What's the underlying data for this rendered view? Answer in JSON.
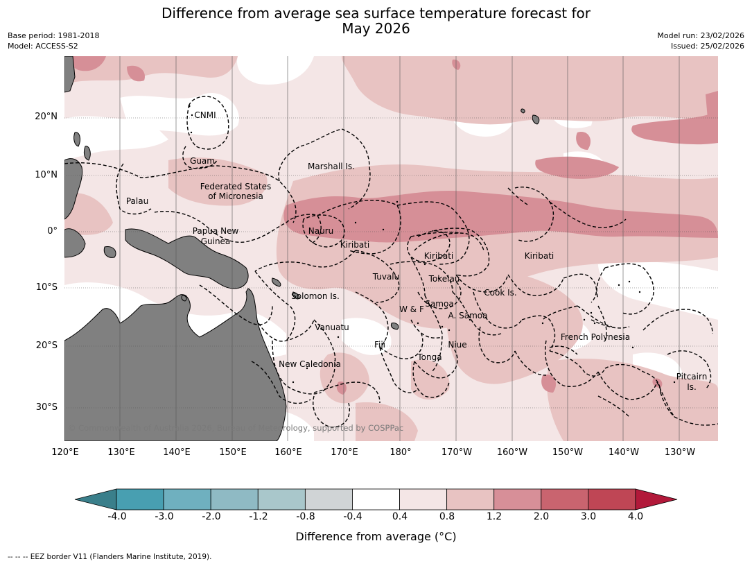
{
  "title_line1": "Difference from average sea surface temperature forecast for",
  "title_line2": "May 2026",
  "meta": {
    "base_period": "Base period: 1981-2018",
    "model": "Model: ACCESS-S2",
    "model_run": "Model run: 23/02/2026",
    "issued": "Issued: 25/02/2026"
  },
  "lat_labels": [
    "20°N",
    "10°N",
    "0°",
    "10°S",
    "20°S",
    "30°S"
  ],
  "lon_labels": [
    "120°E",
    "130°E",
    "140°E",
    "150°E",
    "160°E",
    "170°E",
    "180°",
    "170°W",
    "160°W",
    "150°W",
    "140°W",
    "130°W"
  ],
  "places": {
    "cnmi": "CNMI",
    "guam": "Guam",
    "marshall": "Marshall Is.",
    "fsm1": "Federated States",
    "fsm2": "of Micronesia",
    "palau": "Palau",
    "png1": "Papua New",
    "png2": "Guinea",
    "nauru": "Nauru",
    "kiribati_w": "Kiribati",
    "kiribati_c": "Kiribati",
    "kiribati_e": "Kiribati",
    "tuvalu": "Tuvalu",
    "tokelau": "Tokelau",
    "solomon": "Solomon Is.",
    "samoa": "Samoa",
    "wf": "W & F",
    "asamoa": "A. Samoa",
    "cook": "Cook Is.",
    "vanuatu": "Vanuatu",
    "fiji": "Fiji",
    "niue": "Niue",
    "tonga": "Tonga",
    "newcal": "New Caledonia",
    "frpoly": "French Polynesia",
    "pitcairn1": "Pitcairn",
    "pitcairn2": "Is."
  },
  "copyright": "© Commonwealth of Australia 2026, Bureau of Meteorology, supported by COSPPac",
  "colorbar": {
    "title": "Difference from average (°C)",
    "labels": [
      "-4.0",
      "-3.0",
      "-2.0",
      "-1.2",
      "-0.8",
      "-0.4",
      "0.4",
      "0.8",
      "1.2",
      "2.0",
      "3.0",
      "4.0"
    ],
    "low_color": "#3a7f8b",
    "high_color": "#b2193a",
    "colors": [
      "#489fb1",
      "#6fb0bf",
      "#8fbac4",
      "#a9c7cb",
      "#d0d4d6",
      "#ffffff",
      "#f4e6e6",
      "#e8c3c2",
      "#d78f98",
      "#c9646f",
      "#bf4655"
    ]
  },
  "footnote": "-- -- -- EEZ border V11 (Flanders Marine Institute, 2019).",
  "colors": {
    "land": "#808080",
    "level1": "#f4e6e6",
    "level2": "#e8c3c2",
    "level3": "#d68f97",
    "level4": "#c9646f"
  }
}
